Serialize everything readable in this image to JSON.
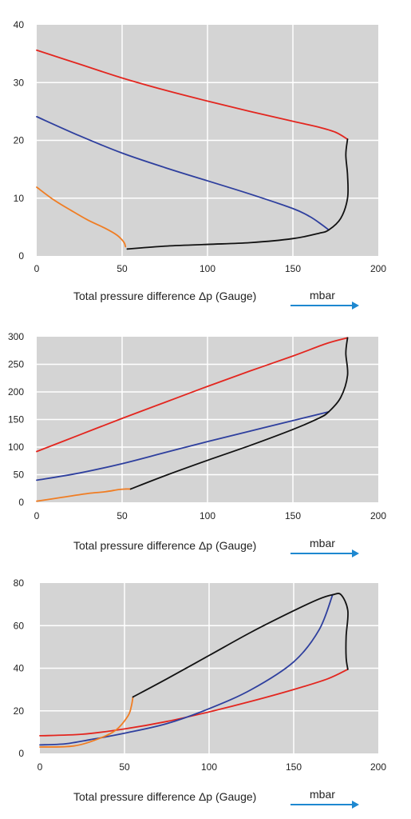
{
  "colors": {
    "plot_background": "#d4d4d4",
    "grid": "#ffffff",
    "red": "#e3261f",
    "blue": "#2e3f9e",
    "orange": "#f07d23",
    "black": "#111111",
    "arrow": "#1e88d0"
  },
  "chart_data": [
    {
      "type": "line",
      "xlabel": "Total pressure difference Δp (Gauge)",
      "x_unit": "mbar",
      "xlim": [
        0,
        200
      ],
      "ylim": [
        0,
        40
      ],
      "x_ticks": [
        "0",
        "50",
        "100",
        "150",
        "200"
      ],
      "y_ticks": [
        "0",
        "10",
        "20",
        "30",
        "40"
      ],
      "grid": true,
      "series": [
        {
          "color": "red",
          "points": [
            [
              0,
              35.6
            ],
            [
              25,
              33.2
            ],
            [
              50,
              30.8
            ],
            [
              75,
              28.7
            ],
            [
              100,
              26.8
            ],
            [
              125,
              25.0
            ],
            [
              150,
              23.3
            ],
            [
              165,
              22.3
            ],
            [
              175,
              21.4
            ],
            [
              182,
              20.2
            ]
          ]
        },
        {
          "color": "blue",
          "points": [
            [
              0,
              24.1
            ],
            [
              25,
              20.8
            ],
            [
              50,
              17.8
            ],
            [
              75,
              15.3
            ],
            [
              100,
              13.0
            ],
            [
              125,
              10.7
            ],
            [
              150,
              8.2
            ],
            [
              160,
              6.8
            ],
            [
              167,
              5.4
            ],
            [
              171,
              4.5
            ]
          ]
        },
        {
          "color": "orange",
          "points": [
            [
              0,
              11.9
            ],
            [
              10,
              9.7
            ],
            [
              20,
              7.9
            ],
            [
              30,
              6.2
            ],
            [
              40,
              4.8
            ],
            [
              47,
              3.6
            ],
            [
              51,
              2.4
            ],
            [
              52,
              1.6
            ]
          ]
        },
        {
          "color": "black",
          "points": [
            [
              53,
              1.2
            ],
            [
              75,
              1.7
            ],
            [
              100,
              2.0
            ],
            [
              125,
              2.3
            ],
            [
              150,
              3.0
            ],
            [
              165,
              3.9
            ],
            [
              171,
              4.5
            ],
            [
              178,
              6.5
            ],
            [
              182,
              10.0
            ],
            [
              182,
              14.0
            ],
            [
              181,
              17.5
            ],
            [
              182,
              20.2
            ]
          ]
        }
      ]
    },
    {
      "type": "line",
      "xlabel": "Total pressure difference Δp (Gauge)",
      "x_unit": "mbar",
      "xlim": [
        0,
        200
      ],
      "ylim": [
        0,
        300
      ],
      "x_ticks": [
        "0",
        "50",
        "100",
        "150",
        "200"
      ],
      "y_ticks": [
        "0",
        "50",
        "100",
        "150",
        "200",
        "250",
        "300"
      ],
      "grid": true,
      "series": [
        {
          "color": "red",
          "points": [
            [
              0,
              92
            ],
            [
              25,
              122
            ],
            [
              50,
              152
            ],
            [
              75,
              181
            ],
            [
              100,
              210
            ],
            [
              125,
              238
            ],
            [
              150,
              265
            ],
            [
              170,
              288
            ],
            [
              182,
              298
            ]
          ]
        },
        {
          "color": "blue",
          "points": [
            [
              0,
              40
            ],
            [
              25,
              53
            ],
            [
              50,
              70
            ],
            [
              75,
              90
            ],
            [
              100,
              110
            ],
            [
              125,
              129
            ],
            [
              150,
              148
            ],
            [
              171,
              164
            ]
          ]
        },
        {
          "color": "orange",
          "points": [
            [
              0,
              2
            ],
            [
              15,
              9
            ],
            [
              30,
              16
            ],
            [
              40,
              19
            ],
            [
              48,
              23
            ],
            [
              52,
              24
            ],
            [
              55,
              24
            ]
          ]
        },
        {
          "color": "black",
          "points": [
            [
              55,
              24
            ],
            [
              75,
              48
            ],
            [
              100,
              76
            ],
            [
              125,
              103
            ],
            [
              150,
              132
            ],
            [
              165,
              152
            ],
            [
              171,
              164
            ],
            [
              178,
              190
            ],
            [
              182,
              230
            ],
            [
              181,
              270
            ],
            [
              182,
              298
            ]
          ]
        }
      ]
    },
    {
      "type": "line",
      "xlabel": "Total pressure difference Δp (Gauge)",
      "x_unit": "mbar",
      "xlim": [
        0,
        200
      ],
      "ylim": [
        0,
        80
      ],
      "x_ticks": [
        "0",
        "50",
        "100",
        "150",
        "200"
      ],
      "y_ticks": [
        "0",
        "20",
        "40",
        "60",
        "80"
      ],
      "grid": true,
      "series": [
        {
          "color": "red",
          "points": [
            [
              0,
              8.3
            ],
            [
              25,
              9.0
            ],
            [
              50,
              11.5
            ],
            [
              75,
              15.0
            ],
            [
              100,
              19.5
            ],
            [
              125,
              24.5
            ],
            [
              150,
              30.0
            ],
            [
              170,
              35.0
            ],
            [
              182,
              39.5
            ]
          ]
        },
        {
          "color": "blue",
          "points": [
            [
              0,
              4.0
            ],
            [
              15,
              4.5
            ],
            [
              30,
              6.5
            ],
            [
              50,
              9.5
            ],
            [
              75,
              14.0
            ],
            [
              100,
              21.0
            ],
            [
              125,
              30.0
            ],
            [
              150,
              43.0
            ],
            [
              165,
              58.0
            ],
            [
              173,
              74.5
            ]
          ]
        },
        {
          "color": "orange",
          "points": [
            [
              0,
              3.0
            ],
            [
              20,
              3.5
            ],
            [
              35,
              7.0
            ],
            [
              45,
              11.0
            ],
            [
              52,
              17.5
            ],
            [
              54,
              22.0
            ],
            [
              55,
              26.5
            ]
          ]
        },
        {
          "color": "black",
          "points": [
            [
              55,
              26.5
            ],
            [
              75,
              35.0
            ],
            [
              100,
              46.0
            ],
            [
              125,
              57.0
            ],
            [
              150,
              67.0
            ],
            [
              165,
              72.5
            ],
            [
              173,
              74.5
            ],
            [
              178,
              74.5
            ],
            [
              182,
              67.0
            ],
            [
              181,
              55.0
            ],
            [
              181,
              45.0
            ],
            [
              182,
              39.5
            ]
          ]
        }
      ]
    }
  ]
}
